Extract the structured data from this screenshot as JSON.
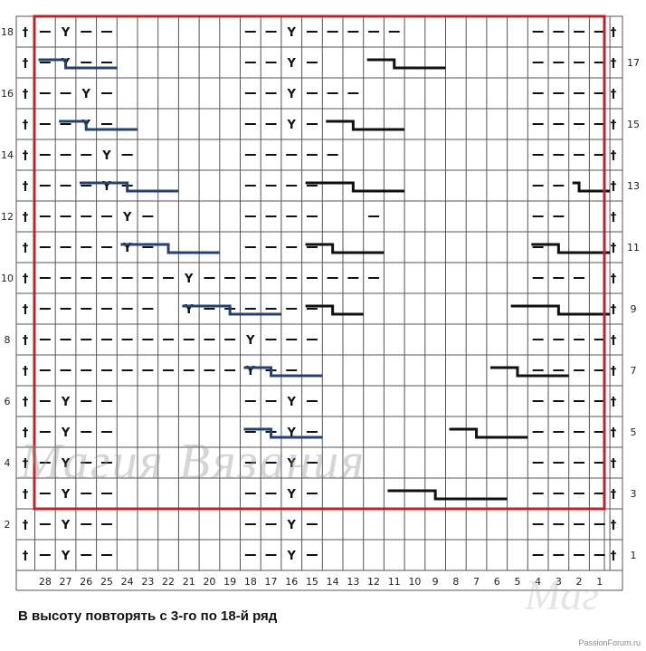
{
  "caption": "В высоту повторять с 3-го по 18-й ряд",
  "watermark": "Магия Вязания",
  "watermark_fragment": "Маг",
  "site": "PassionForum.ru",
  "colors": {
    "grid": "#555555",
    "repeat_frame": "#c0232a",
    "cable_blue": "#27406e",
    "cable_black": "#111111",
    "symbol": "#111111"
  },
  "legend_symbols": {
    "purl": "—",
    "yarn_over": "Y",
    "edge": "†"
  },
  "chart": {
    "columns": 28,
    "rows": 18,
    "column_labels": [
      "28",
      "27",
      "26",
      "25",
      "24",
      "23",
      "22",
      "21",
      "20",
      "19",
      "18",
      "17",
      "16",
      "15",
      "14",
      "13",
      "12",
      "11",
      "10",
      "9",
      "8",
      "7",
      "6",
      "5",
      "4",
      "3",
      "2",
      "1"
    ],
    "left_row_labels": [
      "18",
      "16",
      "14",
      "12",
      "10",
      "8",
      "6",
      "4",
      "2"
    ],
    "right_row_labels": [
      "17",
      "15",
      "13",
      "11",
      "9",
      "7",
      "5",
      "3",
      "1"
    ],
    "repeat_rows": [
      3,
      18
    ],
    "cells": {
      "18": [
        "-",
        "Y",
        "-",
        "-",
        "",
        "",
        "",
        "",
        "",
        "",
        "-",
        "-",
        "Y",
        "-",
        "-",
        "-",
        "-",
        "-",
        "",
        "",
        "",
        "",
        "",
        "",
        "-",
        "-",
        "-",
        "-"
      ],
      "17": [
        "-",
        "Y",
        "-",
        "-",
        "",
        "",
        "",
        "",
        "",
        "",
        "-",
        "-",
        "Y",
        "-",
        "",
        "",
        "",
        "",
        "",
        "",
        "",
        "",
        "",
        "",
        "-",
        "-",
        "-",
        "-"
      ],
      "16": [
        "-",
        "-",
        "Y",
        "-",
        "",
        "",
        "",
        "",
        "",
        "",
        "-",
        "-",
        "Y",
        "-",
        "-",
        "-",
        "",
        "",
        "",
        "",
        "",
        "",
        "",
        "",
        "-",
        "-",
        "-",
        "-"
      ],
      "15": [
        "-",
        "-",
        "Y",
        "-",
        "",
        "",
        "",
        "",
        "",
        "",
        "-",
        "-",
        "Y",
        "-",
        "",
        "",
        "",
        "",
        "",
        "",
        "",
        "",
        "",
        "",
        "-",
        "-",
        "-",
        "-"
      ],
      "14": [
        "-",
        "-",
        "-",
        "Y",
        "-",
        "",
        "",
        "",
        "",
        "",
        "-",
        "-",
        "-",
        "-",
        "-",
        "",
        "",
        "",
        "",
        "",
        "",
        "",
        "",
        "",
        "-",
        "-",
        "-",
        "-"
      ],
      "13": [
        "-",
        "-",
        "-",
        "Y",
        "-",
        "",
        "",
        "",
        "",
        "",
        "-",
        "-",
        "-",
        "-",
        "",
        "",
        "",
        "",
        "",
        "",
        "",
        "",
        "",
        "",
        "-",
        "-",
        "",
        ""
      ],
      "12": [
        "-",
        "-",
        "-",
        "-",
        "Y",
        "-",
        "",
        "",
        "",
        "",
        "-",
        "-",
        "-",
        "-",
        "",
        "",
        "-",
        "",
        "",
        "",
        "",
        "",
        "",
        "",
        "-",
        "-",
        "",
        ""
      ],
      "11": [
        "-",
        "-",
        "-",
        "-",
        "Y",
        "-",
        "",
        "",
        "",
        "",
        "-",
        "-",
        "-",
        "-",
        "",
        "",
        "",
        "",
        "",
        "",
        "",
        "",
        "",
        "",
        "-",
        "",
        "",
        ""
      ],
      "10": [
        "-",
        "-",
        "-",
        "-",
        "-",
        "-",
        "-",
        "Y",
        "-",
        "-",
        "-",
        "-",
        "-",
        "-",
        "-",
        "-",
        "-",
        "",
        "",
        "",
        "",
        "",
        "",
        "",
        "-",
        "-",
        "-",
        ""
      ],
      "9": [
        "-",
        "-",
        "-",
        "-",
        "-",
        "-",
        "",
        "Y",
        "-",
        "-",
        "-",
        "-",
        "-",
        "-",
        "",
        "",
        "",
        "",
        "",
        "",
        "",
        "",
        "",
        "",
        "",
        "",
        "",
        ""
      ],
      "8": [
        "-",
        "-",
        "-",
        "-",
        "-",
        "-",
        "-",
        "-",
        "-",
        "-",
        "Y",
        "-",
        "-",
        "-",
        "",
        "",
        "",
        "",
        "",
        "",
        "",
        "",
        "",
        "",
        "-",
        "-",
        "-",
        "-"
      ],
      "7": [
        "-",
        "-",
        "-",
        "-",
        "-",
        "-",
        "-",
        "-",
        "-",
        "-",
        "Y",
        "-",
        "-",
        "",
        "",
        "",
        "",
        "",
        "",
        "",
        "",
        "",
        "",
        "",
        "-",
        "-",
        "-",
        "-"
      ],
      "6": [
        "-",
        "Y",
        "-",
        "-",
        "",
        "",
        "",
        "",
        "",
        "",
        "-",
        "-",
        "Y",
        "-",
        "",
        "",
        "",
        "",
        "",
        "",
        "",
        "",
        "",
        "",
        "-",
        "-",
        "-",
        "-"
      ],
      "5": [
        "-",
        "Y",
        "-",
        "-",
        "",
        "",
        "",
        "",
        "",
        "",
        "-",
        "-",
        "Y",
        "-",
        "",
        "",
        "",
        "",
        "",
        "",
        "",
        "",
        "",
        "",
        "-",
        "-",
        "-",
        "-"
      ],
      "4": [
        "-",
        "Y",
        "-",
        "-",
        "",
        "",
        "",
        "",
        "",
        "",
        "-",
        "-",
        "Y",
        "-",
        "",
        "",
        "",
        "",
        "",
        "",
        "",
        "",
        "",
        "",
        "-",
        "-",
        "-",
        "-"
      ],
      "3": [
        "-",
        "Y",
        "-",
        "-",
        "",
        "",
        "",
        "",
        "",
        "",
        "-",
        "-",
        "Y",
        "-",
        "",
        "",
        "",
        "",
        "",
        "",
        "",
        "",
        "",
        "",
        "-",
        "-",
        "-",
        "-"
      ],
      "2": [
        "-",
        "Y",
        "-",
        "-",
        "",
        "",
        "",
        "",
        "",
        "",
        "-",
        "-",
        "Y",
        "-",
        "",
        "",
        "",
        "",
        "",
        "",
        "",
        "",
        "",
        "",
        "-",
        "-",
        "-",
        "-"
      ],
      "1": [
        "-",
        "Y",
        "-",
        "-",
        "",
        "",
        "",
        "",
        "",
        "",
        "-",
        "-",
        "Y",
        "-",
        "",
        "",
        "",
        "",
        "",
        "",
        "",
        "",
        "",
        "",
        "-",
        "-",
        "-",
        "-"
      ]
    },
    "cables_blue": [
      {
        "row": 17,
        "from_col": 28,
        "to_col": 25
      },
      {
        "row": 15,
        "from_col": 27,
        "to_col": 24
      },
      {
        "row": 13,
        "from_col": 26,
        "to_col": 22
      },
      {
        "row": 11,
        "from_col": 24,
        "to_col": 20
      },
      {
        "row": 9,
        "from_col": 21,
        "to_col": 17
      },
      {
        "row": 7,
        "from_col": 18,
        "to_col": 15
      },
      {
        "row": 5,
        "from_col": 18,
        "to_col": 15
      }
    ],
    "cables_black": [
      {
        "row": 17,
        "from_col": 12,
        "to_col": 9
      },
      {
        "row": 15,
        "from_col": 14,
        "to_col": 11
      },
      {
        "row": 13,
        "from_col": 15,
        "to_col": 11
      },
      {
        "row": 11,
        "from_col": 15,
        "to_col": 12
      },
      {
        "row": 9,
        "from_col": 15,
        "to_col": 13
      },
      {
        "row": 7,
        "from_col": 6,
        "to_col": 3
      },
      {
        "row": 5,
        "from_col": 8,
        "to_col": 5
      },
      {
        "row": 3,
        "from_col": 11,
        "to_col": 6
      },
      {
        "row": 11,
        "from_col": 4,
        "to_col": 1
      },
      {
        "row": 13,
        "from_col": 2,
        "to_col": 1
      },
      {
        "row": 9,
        "from_col": 5,
        "to_col": 1
      }
    ]
  }
}
